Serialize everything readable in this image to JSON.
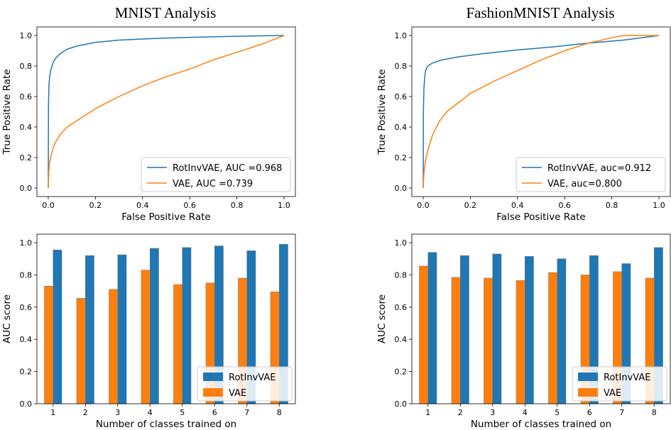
{
  "column_titles": [
    "MNIST Analysis",
    "FashionMNIST Analysis"
  ],
  "colors": {
    "rotinv": "#1f77b4",
    "vae": "#ff7f0e"
  },
  "chart_data": [
    {
      "id": "mnist-roc",
      "type": "line",
      "title": "MNIST Analysis",
      "xlabel": "False Positive Rate",
      "ylabel": "True Positive Rate",
      "xlim": [
        0,
        1
      ],
      "ylim": [
        0,
        1
      ],
      "xticks": [
        0.0,
        0.2,
        0.4,
        0.6,
        0.8,
        1.0
      ],
      "xtick_labels": [
        "0.0",
        "0.2",
        "0.4",
        "0.6",
        "0.8",
        "1.0"
      ],
      "yticks": [
        0.0,
        0.2,
        0.4,
        0.6,
        0.8,
        1.0
      ],
      "ytick_labels": [
        "0.0",
        "0.2",
        "0.4",
        "0.6",
        "0.8",
        "1.0"
      ],
      "legend_position": "lower-right",
      "series": [
        {
          "name": "RotInvVAE, AUC =0.968",
          "color": "#1f77b4",
          "x": [
            0,
            0.001,
            0.003,
            0.006,
            0.01,
            0.02,
            0.03,
            0.05,
            0.08,
            0.12,
            0.2,
            0.3,
            0.45,
            0.6,
            0.8,
            1.0
          ],
          "y": [
            0,
            0.55,
            0.68,
            0.73,
            0.77,
            0.82,
            0.85,
            0.88,
            0.91,
            0.93,
            0.955,
            0.97,
            0.98,
            0.988,
            0.995,
            1.0
          ]
        },
        {
          "name": "VAE, AUC =0.739",
          "color": "#ff7f0e",
          "x": [
            0,
            0.002,
            0.005,
            0.01,
            0.02,
            0.03,
            0.05,
            0.08,
            0.12,
            0.2,
            0.3,
            0.4,
            0.5,
            0.6,
            0.7,
            0.8,
            0.9,
            1.0
          ],
          "y": [
            0,
            0.1,
            0.16,
            0.2,
            0.26,
            0.3,
            0.35,
            0.4,
            0.44,
            0.52,
            0.6,
            0.67,
            0.73,
            0.78,
            0.84,
            0.89,
            0.94,
            1.0
          ]
        }
      ]
    },
    {
      "id": "fashion-roc",
      "type": "line",
      "title": "FashionMNIST Analysis",
      "xlabel": "False Positive Rate",
      "ylabel": "True Positive Rate",
      "xlim": [
        0,
        1
      ],
      "ylim": [
        0,
        1
      ],
      "xticks": [
        0.0,
        0.2,
        0.4,
        0.6,
        0.8,
        1.0
      ],
      "xtick_labels": [
        "0.0",
        "0.2",
        "0.4",
        "0.6",
        "0.8",
        "1.0"
      ],
      "yticks": [
        0.0,
        0.2,
        0.4,
        0.6,
        0.8,
        1.0
      ],
      "ytick_labels": [
        "0.0",
        "0.2",
        "0.4",
        "0.6",
        "0.8",
        "1.0"
      ],
      "legend_position": "lower-right",
      "series": [
        {
          "name": "RotInvVAE, auc=0.912",
          "color": "#1f77b4",
          "x": [
            0,
            0.001,
            0.003,
            0.006,
            0.01,
            0.02,
            0.04,
            0.08,
            0.15,
            0.25,
            0.4,
            0.55,
            0.7,
            0.85,
            1.0
          ],
          "y": [
            0,
            0.5,
            0.65,
            0.72,
            0.77,
            0.8,
            0.82,
            0.84,
            0.86,
            0.88,
            0.905,
            0.925,
            0.95,
            0.97,
            1.0
          ]
        },
        {
          "name": "VAE, auc=0.800",
          "color": "#ff7f0e",
          "x": [
            0,
            0.002,
            0.005,
            0.01,
            0.02,
            0.04,
            0.07,
            0.1,
            0.15,
            0.2,
            0.3,
            0.4,
            0.5,
            0.6,
            0.7,
            0.8,
            0.85,
            0.9,
            1.0
          ],
          "y": [
            0,
            0.08,
            0.12,
            0.18,
            0.25,
            0.35,
            0.44,
            0.5,
            0.56,
            0.62,
            0.7,
            0.77,
            0.84,
            0.9,
            0.95,
            0.985,
            1.0,
            1.0,
            1.0
          ]
        }
      ]
    },
    {
      "id": "mnist-bar",
      "type": "bar",
      "xlabel": "Number of classes trained on",
      "ylabel": "AUC score",
      "ylim": [
        0,
        1
      ],
      "categories": [
        "1",
        "2",
        "3",
        "4",
        "5",
        "6",
        "7",
        "8"
      ],
      "yticks": [
        0.0,
        0.2,
        0.4,
        0.6,
        0.8,
        1.0
      ],
      "ytick_labels": [
        "0.0",
        "0.2",
        "0.4",
        "0.6",
        "0.8",
        "1.0"
      ],
      "legend_position": "lower-right",
      "series": [
        {
          "name": "RotInvVAE",
          "color": "#1f77b4",
          "values": [
            0.955,
            0.92,
            0.925,
            0.965,
            0.97,
            0.98,
            0.95,
            0.99
          ]
        },
        {
          "name": "VAE",
          "color": "#ff7f0e",
          "values": [
            0.73,
            0.655,
            0.71,
            0.83,
            0.74,
            0.75,
            0.78,
            0.695
          ]
        }
      ]
    },
    {
      "id": "fashion-bar",
      "type": "bar",
      "xlabel": "Number of classes trained on",
      "ylabel": "AUC score",
      "ylim": [
        0,
        1
      ],
      "categories": [
        "1",
        "2",
        "3",
        "4",
        "5",
        "6",
        "7",
        "8"
      ],
      "yticks": [
        0.0,
        0.2,
        0.4,
        0.6,
        0.8,
        1.0
      ],
      "ytick_labels": [
        "0.0",
        "0.2",
        "0.4",
        "0.6",
        "0.8",
        "1.0"
      ],
      "legend_position": "lower-right",
      "series": [
        {
          "name": "RotInvVAE",
          "color": "#1f77b4",
          "values": [
            0.94,
            0.92,
            0.93,
            0.915,
            0.9,
            0.92,
            0.87,
            0.97
          ]
        },
        {
          "name": "VAE",
          "color": "#ff7f0e",
          "values": [
            0.855,
            0.785,
            0.78,
            0.765,
            0.815,
            0.8,
            0.82,
            0.78
          ]
        }
      ]
    }
  ]
}
